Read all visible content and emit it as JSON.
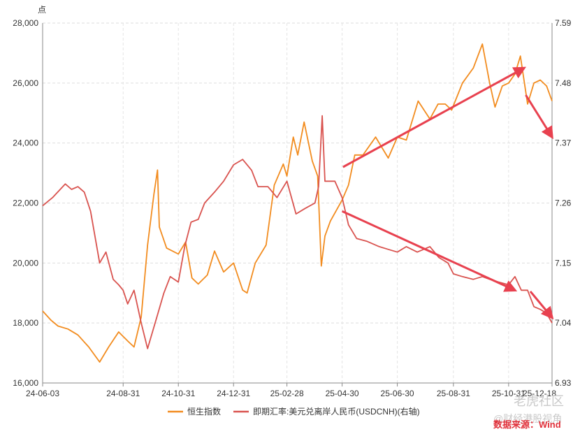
{
  "chart_data": {
    "type": "line",
    "ylabel_left": "点",
    "ylim_left": [
      16000,
      28000
    ],
    "yticks_left": [
      "16,000",
      "18,000",
      "20,000",
      "22,000",
      "24,000",
      "26,000",
      "28,000"
    ],
    "ylim_right": [
      6.93,
      7.59
    ],
    "yticks_right": [
      "6.93",
      "7.04",
      "7.15",
      "7.26",
      "7.37",
      "7.48",
      "7.59"
    ],
    "xticks": [
      "24-06-03",
      "24-08-31",
      "24-10-31",
      "24-12-31",
      "25-02-28",
      "25-04-30",
      "25-06-30",
      "25-08-31",
      "25-10-31",
      "25-12-18"
    ],
    "x_start": "2024-06-03",
    "x_end": "2025-12-18",
    "grid": true,
    "legend_position": "bottom",
    "series": [
      {
        "name": "恒生指数",
        "axis": "left",
        "color": "#f28c1f",
        "points": [
          [
            "2024-06-03",
            18400
          ],
          [
            "2024-06-12",
            18100
          ],
          [
            "2024-06-20",
            17900
          ],
          [
            "2024-07-01",
            17800
          ],
          [
            "2024-07-12",
            17600
          ],
          [
            "2024-07-24",
            17200
          ],
          [
            "2024-08-05",
            16700
          ],
          [
            "2024-08-15",
            17200
          ],
          [
            "2024-08-26",
            17700
          ],
          [
            "2024-09-05",
            17400
          ],
          [
            "2024-09-12",
            17200
          ],
          [
            "2024-09-20",
            18200
          ],
          [
            "2024-09-27",
            20600
          ],
          [
            "2024-10-04",
            22300
          ],
          [
            "2024-10-08",
            23100
          ],
          [
            "2024-10-10",
            21200
          ],
          [
            "2024-10-18",
            20500
          ],
          [
            "2024-10-31",
            20300
          ],
          [
            "2024-11-08",
            20700
          ],
          [
            "2024-11-15",
            19500
          ],
          [
            "2024-11-22",
            19300
          ],
          [
            "2024-12-02",
            19600
          ],
          [
            "2024-12-10",
            20400
          ],
          [
            "2024-12-20",
            19700
          ],
          [
            "2024-12-31",
            20000
          ],
          [
            "2025-01-10",
            19100
          ],
          [
            "2025-01-15",
            19000
          ],
          [
            "2025-01-24",
            20000
          ],
          [
            "2025-02-05",
            20600
          ],
          [
            "2025-02-14",
            22600
          ],
          [
            "2025-02-24",
            23300
          ],
          [
            "2025-02-28",
            22900
          ],
          [
            "2025-03-07",
            24200
          ],
          [
            "2025-03-12",
            23600
          ],
          [
            "2025-03-19",
            24700
          ],
          [
            "2025-03-28",
            23400
          ],
          [
            "2025-04-03",
            22900
          ],
          [
            "2025-04-07",
            19900
          ],
          [
            "2025-04-11",
            20900
          ],
          [
            "2025-04-17",
            21400
          ],
          [
            "2025-04-30",
            22100
          ],
          [
            "2025-05-07",
            22600
          ],
          [
            "2025-05-14",
            23600
          ],
          [
            "2025-05-23",
            23600
          ],
          [
            "2025-06-06",
            24200
          ],
          [
            "2025-06-20",
            23500
          ],
          [
            "2025-06-30",
            24200
          ],
          [
            "2025-07-10",
            24100
          ],
          [
            "2025-07-23",
            25400
          ],
          [
            "2025-08-05",
            24800
          ],
          [
            "2025-08-14",
            25300
          ],
          [
            "2025-08-22",
            25300
          ],
          [
            "2025-08-29",
            25100
          ],
          [
            "2025-09-10",
            26000
          ],
          [
            "2025-09-22",
            26500
          ],
          [
            "2025-10-02",
            27300
          ],
          [
            "2025-10-10",
            26000
          ],
          [
            "2025-10-16",
            25200
          ],
          [
            "2025-10-24",
            25900
          ],
          [
            "2025-10-31",
            26000
          ],
          [
            "2025-11-07",
            26300
          ],
          [
            "2025-11-13",
            26900
          ],
          [
            "2025-11-21",
            25300
          ],
          [
            "2025-11-28",
            26000
          ],
          [
            "2025-12-05",
            26100
          ],
          [
            "2025-12-12",
            25900
          ],
          [
            "2025-12-18",
            25400
          ]
        ]
      },
      {
        "name": "即期汇率:美元兑离岸人民币(USDCNH)(右轴)",
        "axis": "right",
        "color": "#d9534f",
        "points": [
          [
            "2024-06-03",
            7.255
          ],
          [
            "2024-06-14",
            7.27
          ],
          [
            "2024-06-28",
            7.295
          ],
          [
            "2024-07-05",
            7.285
          ],
          [
            "2024-07-12",
            7.29
          ],
          [
            "2024-07-19",
            7.28
          ],
          [
            "2024-07-26",
            7.245
          ],
          [
            "2024-08-05",
            7.15
          ],
          [
            "2024-08-12",
            7.17
          ],
          [
            "2024-08-20",
            7.12
          ],
          [
            "2024-08-26",
            7.11
          ],
          [
            "2024-08-31",
            7.1
          ],
          [
            "2024-09-05",
            7.075
          ],
          [
            "2024-09-12",
            7.1
          ],
          [
            "2024-09-20",
            7.04
          ],
          [
            "2024-09-27",
            6.993
          ],
          [
            "2024-10-08",
            7.055
          ],
          [
            "2024-10-15",
            7.095
          ],
          [
            "2024-10-22",
            7.125
          ],
          [
            "2024-10-31",
            7.115
          ],
          [
            "2024-11-07",
            7.18
          ],
          [
            "2024-11-14",
            7.225
          ],
          [
            "2024-11-22",
            7.23
          ],
          [
            "2024-11-29",
            7.26
          ],
          [
            "2024-12-10",
            7.28
          ],
          [
            "2024-12-20",
            7.3
          ],
          [
            "2024-12-31",
            7.33
          ],
          [
            "2025-01-10",
            7.34
          ],
          [
            "2025-01-20",
            7.32
          ],
          [
            "2025-01-27",
            7.29
          ],
          [
            "2025-02-07",
            7.29
          ],
          [
            "2025-02-17",
            7.27
          ],
          [
            "2025-02-28",
            7.3
          ],
          [
            "2025-03-10",
            7.24
          ],
          [
            "2025-03-20",
            7.25
          ],
          [
            "2025-03-31",
            7.26
          ],
          [
            "2025-04-04",
            7.29
          ],
          [
            "2025-04-08",
            7.42
          ],
          [
            "2025-04-11",
            7.3
          ],
          [
            "2025-04-22",
            7.3
          ],
          [
            "2025-04-30",
            7.27
          ],
          [
            "2025-05-07",
            7.22
          ],
          [
            "2025-05-16",
            7.195
          ],
          [
            "2025-05-27",
            7.19
          ],
          [
            "2025-06-10",
            7.18
          ],
          [
            "2025-06-20",
            7.175
          ],
          [
            "2025-06-30",
            7.17
          ],
          [
            "2025-07-10",
            7.18
          ],
          [
            "2025-07-22",
            7.17
          ],
          [
            "2025-08-05",
            7.18
          ],
          [
            "2025-08-15",
            7.16
          ],
          [
            "2025-08-25",
            7.15
          ],
          [
            "2025-08-31",
            7.13
          ],
          [
            "2025-09-10",
            7.125
          ],
          [
            "2025-09-22",
            7.12
          ],
          [
            "2025-10-02",
            7.125
          ],
          [
            "2025-10-10",
            7.12
          ],
          [
            "2025-10-20",
            7.115
          ],
          [
            "2025-10-31",
            7.11
          ],
          [
            "2025-11-07",
            7.125
          ],
          [
            "2025-11-14",
            7.1
          ],
          [
            "2025-11-21",
            7.1
          ],
          [
            "2025-11-28",
            7.07
          ],
          [
            "2025-12-05",
            7.065
          ],
          [
            "2025-12-12",
            7.058
          ],
          [
            "2025-12-18",
            7.04
          ]
        ]
      }
    ],
    "annotations": [
      {
        "type": "arrow",
        "color": "#e8414f",
        "from": [
          "2025-05-01",
          23200
        ],
        "to": [
          "2025-11-17",
          26500
        ],
        "axis": "left"
      },
      {
        "type": "arrow",
        "color": "#e8414f",
        "from": [
          "2025-11-19",
          25600
        ],
        "to": [
          "2025-12-18",
          24200
        ],
        "axis": "left"
      },
      {
        "type": "arrow",
        "color": "#e8414f",
        "from": [
          "2025-04-30",
          7.245
        ],
        "to": [
          "2025-11-07",
          7.1
        ],
        "axis": "right"
      },
      {
        "type": "arrow",
        "color": "#e8414f",
        "from": [
          "2025-11-24",
          7.098
        ],
        "to": [
          "2025-12-18",
          7.05
        ],
        "axis": "right"
      }
    ],
    "source_note": "数据来源：Wind",
    "watermark": [
      "老虎社区",
      "@财经港股视角"
    ]
  }
}
